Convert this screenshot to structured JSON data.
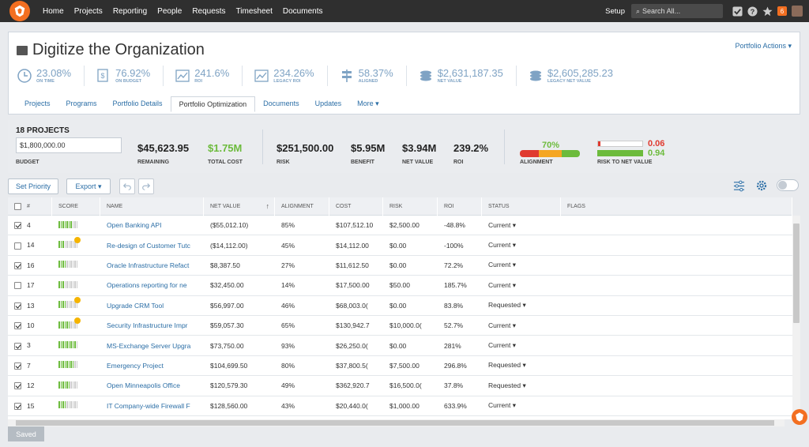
{
  "nav": {
    "links": [
      "Home",
      "Projects",
      "Reporting",
      "People",
      "Requests",
      "Timesheet",
      "Documents"
    ],
    "setup": "Setup",
    "search_placeholder": "Search All...",
    "notification_count": "6"
  },
  "header": {
    "title": "Digitize the Organization",
    "portfolio_actions": "Portfolio Actions ▾",
    "metrics": [
      {
        "icon": "clock-icon",
        "value": "23.08%",
        "label": "ON TIME"
      },
      {
        "icon": "dollar-doc-icon",
        "value": "76.92%",
        "label": "ON BUDGET"
      },
      {
        "icon": "roi-chart-icon",
        "value": "241.6%",
        "label": "ROI"
      },
      {
        "icon": "legacy-roi-chart-icon",
        "value": "234.26%",
        "label": "LEGACY ROI"
      },
      {
        "icon": "aligned-signpost-icon",
        "value": "58.37%",
        "label": "ALIGNED"
      },
      {
        "icon": "coins-icon",
        "value": "$2,631,187.35",
        "label": "NET VALUE"
      },
      {
        "icon": "legacy-coins-icon",
        "value": "$2,605,285.23",
        "label": "LEGACY NET VALUE"
      }
    ],
    "tabs": [
      "Projects",
      "Programs",
      "Portfolio Details",
      "Portfolio Optimization",
      "Documents",
      "Updates",
      "More ▾"
    ],
    "active_tab": "Portfolio Optimization"
  },
  "summary": {
    "project_count": "18 PROJECTS",
    "budget_value": "$1,800,000.00",
    "budget_label": "BUDGET",
    "remaining": "$45,623.95",
    "remaining_label": "REMAINING",
    "total_cost": "$1.75M",
    "total_cost_label": "TOTAL COST",
    "risk": "$251,500.00",
    "risk_label": "RISK",
    "benefit": "$5.95M",
    "benefit_label": "BENEFIT",
    "net_value": "$3.94M",
    "net_value_label": "NET VALUE",
    "roi": "239.2%",
    "roi_label": "ROI",
    "alignment": "70%",
    "alignment_fraction": 0.7,
    "alignment_label": "ALIGNMENT",
    "risk_to_net_a": "0.06",
    "risk_to_net_b": "0.94",
    "risk_to_net_label": "RISK TO NET VALUE"
  },
  "toolbar": {
    "set_priority": "Set Priority",
    "export": "Export ▾"
  },
  "table": {
    "columns": [
      "#",
      "SCORE",
      "NAME",
      "NET VALUE",
      "ALIGNMENT",
      "COST",
      "RISK",
      "ROI",
      "STATUS",
      "FLAGS"
    ],
    "rows": [
      {
        "checked": true,
        "num": "4",
        "score": 7,
        "flag": false,
        "name": "Open Banking API",
        "net_value": "($55,012.10)",
        "alignment": "85%",
        "cost": "$107,512.10",
        "risk": "$2,500.00",
        "roi": "-48.8%",
        "status": "Current ▾"
      },
      {
        "checked": false,
        "num": "14",
        "score": 3,
        "flag": true,
        "name": "Re-design of Customer Tutc",
        "net_value": "($14,112.00)",
        "alignment": "45%",
        "cost": "$14,112.00",
        "risk": "$0.00",
        "roi": "-100%",
        "status": "Current ▾"
      },
      {
        "checked": true,
        "num": "16",
        "score": 4,
        "flag": false,
        "name": "Oracle Infrastructure Refact",
        "net_value": "$8,387.50",
        "alignment": "27%",
        "cost": "$11,612.50",
        "risk": "$0.00",
        "roi": "72.2%",
        "status": "Current ▾"
      },
      {
        "checked": false,
        "num": "17",
        "score": 3,
        "flag": false,
        "name": "Operations reporting for ne",
        "net_value": "$32,450.00",
        "alignment": "14%",
        "cost": "$17,500.00",
        "risk": "$50.00",
        "roi": "185.7%",
        "status": "Current ▾"
      },
      {
        "checked": true,
        "num": "13",
        "score": 4,
        "flag": true,
        "name": "Upgrade CRM Tool",
        "net_value": "$56,997.00",
        "alignment": "46%",
        "cost": "$68,003.0(",
        "risk": "$0.00",
        "roi": "83.8%",
        "status": "Requested ▾"
      },
      {
        "checked": true,
        "num": "10",
        "score": 6,
        "flag": true,
        "name": "Security Infrastructure Impr",
        "net_value": "$59,057.30",
        "alignment": "65%",
        "cost": "$130,942.7",
        "risk": "$10,000.0(",
        "roi": "52.7%",
        "status": "Current ▾"
      },
      {
        "checked": true,
        "num": "3",
        "score": 9,
        "flag": false,
        "name": "MS-Exchange Server Upgra",
        "net_value": "$73,750.00",
        "alignment": "93%",
        "cost": "$26,250.0(",
        "risk": "$0.00",
        "roi": "281%",
        "status": "Current ▾"
      },
      {
        "checked": true,
        "num": "7",
        "score": 8,
        "flag": false,
        "name": "Emergency Project",
        "net_value": "$104,699.50",
        "alignment": "80%",
        "cost": "$37,800.5(",
        "risk": "$7,500.00",
        "roi": "296.8%",
        "status": "Requested ▾"
      },
      {
        "checked": true,
        "num": "12",
        "score": 6,
        "flag": false,
        "name": "Open Minneapolis Office",
        "net_value": "$120,579.30",
        "alignment": "49%",
        "cost": "$362,920.7",
        "risk": "$16,500.0(",
        "roi": "37.8%",
        "status": "Requested ▾"
      },
      {
        "checked": true,
        "num": "15",
        "score": 4,
        "flag": false,
        "name": "IT Company-wide Firewall F",
        "net_value": "$128,560.00",
        "alignment": "43%",
        "cost": "$20,440.0(",
        "risk": "$1,000.00",
        "roi": "633.9%",
        "status": "Current ▾"
      }
    ]
  },
  "footer": {
    "saved": "Saved"
  },
  "colors": {
    "accent": "#2b6ea6",
    "brand": "#f36f21",
    "green": "#6cbb3c",
    "red": "#e03a2f"
  }
}
